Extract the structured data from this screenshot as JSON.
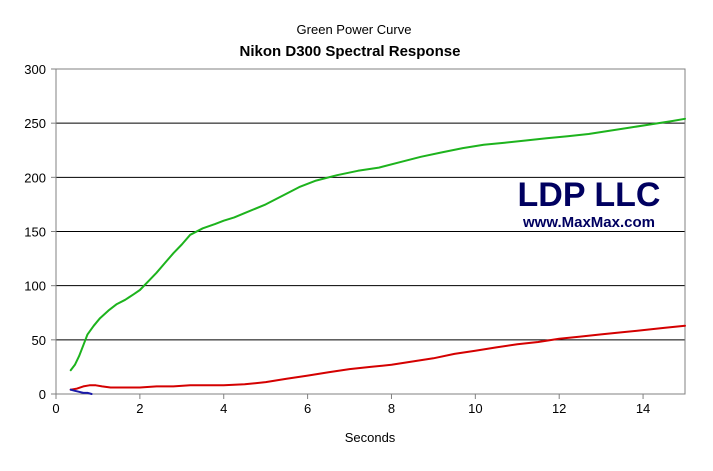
{
  "chart_data": {
    "type": "line",
    "title": "Green Power Curve",
    "subtitle": "Nikon D300 Spectral Response",
    "xlabel": "Seconds",
    "ylabel": "",
    "xlim": [
      0,
      15
    ],
    "ylim": [
      0,
      300
    ],
    "xticks": [
      0,
      2,
      4,
      6,
      8,
      10,
      12,
      14
    ],
    "yticks": [
      0,
      50,
      100,
      150,
      200,
      250,
      300
    ],
    "grid": "horizontal",
    "legend": "none",
    "series": [
      {
        "color": "#1db31d",
        "x": [
          0.35,
          0.45,
          0.55,
          0.65,
          0.75,
          0.9,
          1.05,
          1.25,
          1.45,
          1.65,
          1.85,
          2.0,
          2.2,
          2.4,
          2.6,
          2.8,
          3.0,
          3.2,
          3.5,
          3.8,
          4.0,
          4.25,
          4.5,
          5.0,
          5.5,
          5.8,
          6.2,
          6.7,
          7.2,
          7.7,
          8.2,
          8.7,
          9.2,
          9.7,
          10.2,
          10.7,
          11.2,
          11.7,
          12.2,
          12.7,
          13.2,
          13.7,
          14.2,
          14.7,
          15.0
        ],
        "y": [
          22,
          27,
          35,
          45,
          55,
          63,
          70,
          77,
          83,
          87,
          92,
          96,
          104,
          112,
          121,
          130,
          138,
          147,
          153,
          157,
          160,
          163,
          167,
          175,
          185,
          191,
          197,
          202,
          206,
          209,
          214,
          219,
          223,
          227,
          230,
          232,
          234,
          236,
          238,
          240,
          243,
          246,
          249,
          252,
          254
        ]
      },
      {
        "color": "#d40000",
        "x": [
          0.35,
          0.5,
          0.65,
          0.8,
          0.95,
          1.1,
          1.3,
          1.6,
          2.0,
          2.4,
          2.8,
          3.2,
          3.6,
          4.0,
          4.5,
          5.0,
          5.5,
          6.0,
          6.5,
          7.0,
          7.5,
          8.0,
          8.5,
          9.0,
          9.5,
          10.0,
          10.5,
          11.0,
          11.5,
          12.0,
          12.5,
          13.0,
          13.5,
          14.0,
          14.5,
          15.0
        ],
        "y": [
          4,
          5,
          7,
          8,
          8,
          7,
          6,
          6,
          6,
          7,
          7,
          8,
          8,
          8,
          9,
          11,
          14,
          17,
          20,
          23,
          25,
          27,
          30,
          33,
          37,
          40,
          43,
          46,
          48,
          51,
          53,
          55,
          57,
          59,
          61,
          63
        ]
      },
      {
        "color": "#1a1aa8",
        "x": [
          0.35,
          0.45,
          0.55,
          0.65,
          0.75,
          0.85
        ],
        "y": [
          4,
          3,
          2,
          1,
          1,
          0
        ]
      }
    ]
  },
  "watermark": {
    "line1": "LDP LLC",
    "line2": "www.MaxMax.com"
  }
}
